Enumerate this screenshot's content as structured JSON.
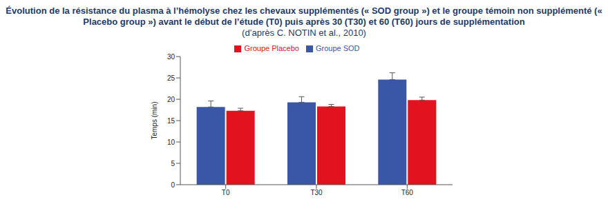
{
  "chart_data": {
    "type": "bar",
    "title": "Évolution de la résistance du plasma à l’hémolyse chez les chevaux supplémentés (« SOD group ») et le groupe témoin non supplémenté (« Placebo group ») avant le début de l’étude (T0) puis après 30 (T30) et 60 (T60) jours de supplémentation",
    "subtitle": "(d’après C. NOTIN et al., 2010)",
    "categories": [
      "T0",
      "T30",
      "T60"
    ],
    "y_label": "Temps (min)",
    "series": [
      {
        "name": "Groupe SOD",
        "color": "#3a56a6",
        "values": [
          18.2,
          19.3,
          24.6
        ],
        "errors": [
          1.4,
          1.3,
          1.6
        ]
      },
      {
        "name": "Groupe Placebo",
        "color": "#e2121f",
        "values": [
          17.3,
          18.3,
          19.8
        ],
        "errors": [
          0.6,
          0.5,
          0.7
        ]
      }
    ],
    "ylim": [
      0,
      30
    ],
    "yticks": [
      0,
      5,
      10,
      15,
      20,
      25,
      30
    ],
    "grid": false,
    "legend": "top"
  }
}
